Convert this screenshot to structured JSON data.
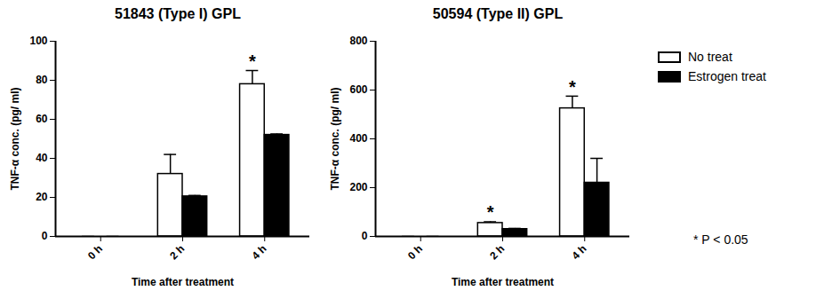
{
  "chart_data": [
    {
      "type": "bar",
      "title": "51843 (Type I) GPL",
      "x_label": "Time after treatment",
      "y_label": "TNF-α conc. (pg/ ml)",
      "categories": [
        "0 h",
        "2 h",
        "4 h"
      ],
      "series": [
        {
          "name": "No treat",
          "color": "#ffffff",
          "values": [
            0,
            32,
            78
          ],
          "errors": [
            0,
            10,
            7
          ]
        },
        {
          "name": "Estrogen treat",
          "color": "#000000",
          "values": [
            0,
            20.5,
            52
          ],
          "errors": [
            0,
            0.5,
            0.5
          ]
        }
      ],
      "ylim": [
        0,
        100
      ],
      "yticks": [
        0,
        20,
        40,
        60,
        80,
        100
      ],
      "annotations": [
        {
          "category": "4 h",
          "text": "*"
        }
      ]
    },
    {
      "type": "bar",
      "title": "50594 (Type II) GPL",
      "x_label": "Time after treatment",
      "y_label": "TNF-α conc. (pg/ ml)",
      "categories": [
        "0 h",
        "2 h",
        "4 h"
      ],
      "series": [
        {
          "name": "No treat",
          "color": "#ffffff",
          "values": [
            0,
            55,
            525
          ],
          "errors": [
            0,
            5,
            50
          ]
        },
        {
          "name": "Estrogen treat",
          "color": "#000000",
          "values": [
            0,
            30,
            220
          ],
          "errors": [
            0,
            3,
            100
          ]
        }
      ],
      "ylim": [
        0,
        800
      ],
      "yticks": [
        0,
        200,
        400,
        600,
        800
      ],
      "annotations": [
        {
          "category": "2 h",
          "text": "*"
        },
        {
          "category": "4 h",
          "text": "*"
        }
      ],
      "legend": "right",
      "note": "* P < 0.05"
    }
  ]
}
